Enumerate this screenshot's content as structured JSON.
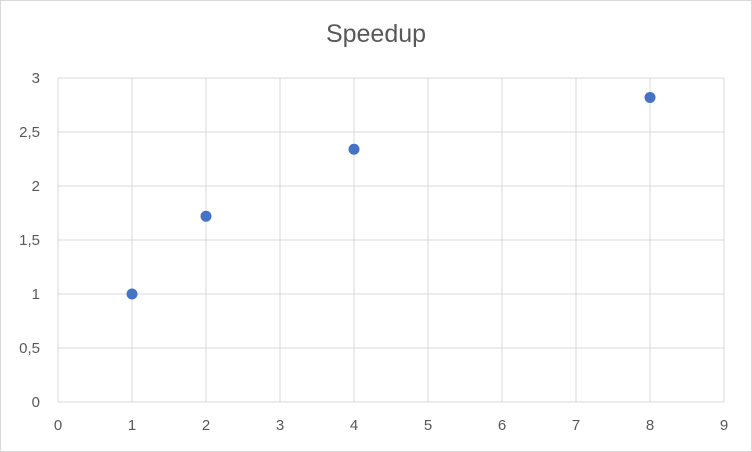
{
  "chart_data": {
    "type": "scatter",
    "title": "Speedup",
    "xlabel": "",
    "ylabel": "",
    "xlim": [
      0,
      9
    ],
    "ylim": [
      0,
      3
    ],
    "x_ticks": [
      0,
      1,
      2,
      3,
      4,
      5,
      6,
      7,
      8,
      9
    ],
    "y_ticks": [
      0,
      0.5,
      1,
      1.5,
      2,
      2.5,
      3
    ],
    "x_tick_labels": [
      "0",
      "1",
      "2",
      "3",
      "4",
      "5",
      "6",
      "7",
      "8",
      "9"
    ],
    "y_tick_labels": [
      "0",
      "0,5",
      "1",
      "1,5",
      "2",
      "2,5",
      "3"
    ],
    "grid": true,
    "legend": "none",
    "marker_color": "#4472c4",
    "series": [
      {
        "x": [
          1,
          2,
          4,
          8
        ],
        "y": [
          1,
          1.72,
          2.34,
          2.82
        ]
      }
    ]
  }
}
